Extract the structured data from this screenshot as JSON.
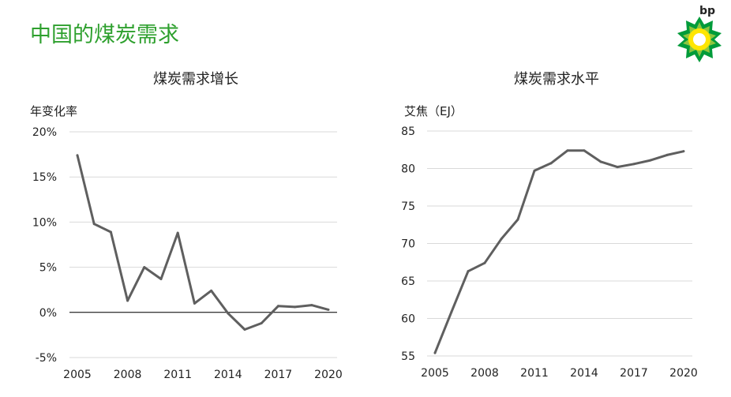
{
  "page": {
    "title": "中国的煤炭需求"
  },
  "logo": {
    "text": "bp",
    "icon": "bp-helios-sunflower-logo",
    "colors": {
      "green": "#009b3a",
      "yellow": "#ffe600",
      "text": "#2ea02e"
    }
  },
  "colors": {
    "line": "#5f5f5f",
    "grid": "#d9d9d9",
    "zero_line": "#000000",
    "title": "#2ea02e"
  },
  "chart_data": [
    {
      "type": "line",
      "title": "煤炭需求增长",
      "ylabel": "年变化率",
      "xlabel": "",
      "x": [
        2005,
        2006,
        2007,
        2008,
        2009,
        2010,
        2011,
        2012,
        2013,
        2014,
        2015,
        2016,
        2017,
        2018,
        2019,
        2020
      ],
      "values": [
        17.4,
        9.8,
        8.9,
        1.3,
        5.0,
        3.7,
        8.8,
        1.0,
        2.4,
        -0.1,
        -1.9,
        -1.2,
        0.7,
        0.6,
        0.8,
        0.3
      ],
      "ylim": [
        -5,
        20
      ],
      "yticks": [
        -5,
        0,
        5,
        10,
        15,
        20
      ],
      "ytick_labels": [
        "-5%",
        "0%",
        "5%",
        "10%",
        "15%",
        "20%"
      ],
      "xticks": [
        2005,
        2008,
        2011,
        2014,
        2017,
        2020
      ],
      "xtick_labels": [
        "2005",
        "2008",
        "2011",
        "2014",
        "2017",
        "2020"
      ],
      "grid": true,
      "zero_line": true
    },
    {
      "type": "line",
      "title": "煤炭需求水平",
      "ylabel": "艾焦（EJ）",
      "xlabel": "",
      "x": [
        2005,
        2006,
        2007,
        2008,
        2009,
        2010,
        2011,
        2012,
        2013,
        2014,
        2015,
        2016,
        2017,
        2018,
        2019,
        2020
      ],
      "values": [
        55.4,
        60.9,
        66.3,
        67.4,
        70.6,
        73.2,
        79.7,
        80.7,
        82.4,
        82.4,
        80.9,
        80.2,
        80.6,
        81.1,
        81.8,
        82.3
      ],
      "ylim": [
        55,
        85
      ],
      "yticks": [
        55,
        60,
        65,
        70,
        75,
        80,
        85
      ],
      "ytick_labels": [
        "55",
        "60",
        "65",
        "70",
        "75",
        "80",
        "85"
      ],
      "xticks": [
        2005,
        2008,
        2011,
        2014,
        2017,
        2020
      ],
      "xtick_labels": [
        "2005",
        "2008",
        "2011",
        "2014",
        "2017",
        "2020"
      ],
      "grid": true,
      "zero_line": false
    }
  ]
}
